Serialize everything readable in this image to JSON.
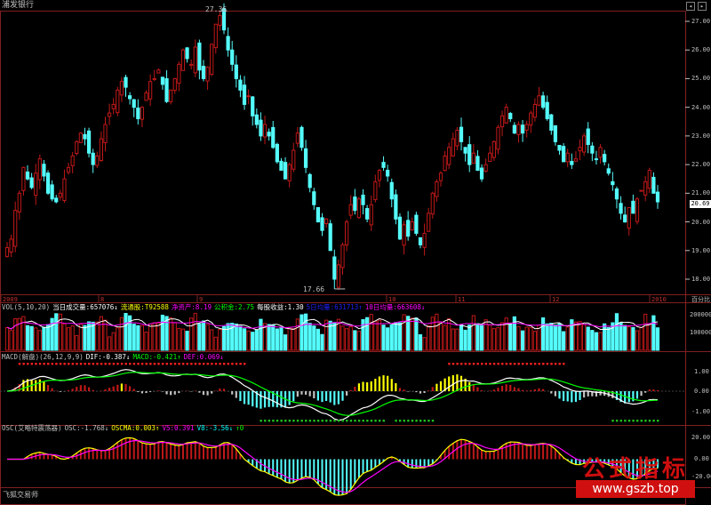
{
  "stock_name": "浦发银行",
  "footer_label": "飞狐交易师",
  "current_price_tag": "20.69",
  "high_label": "27.36",
  "low_label": "17.66",
  "price_axis": [
    "27.00",
    "26.00",
    "25.00",
    "24.00",
    "23.00",
    "22.00",
    "21.00",
    "20.00",
    "19.00",
    "18.00"
  ],
  "price_axis_unit": "百分比",
  "time_axis": [
    "2009",
    "8",
    "9",
    "10",
    "11",
    "12",
    "2010"
  ],
  "volume_panel": {
    "items": [
      {
        "text": "VOL(5,10,20)",
        "color": "#c0c0c0"
      },
      {
        "text": "当日成交量:657076↓",
        "color": "#ffffff"
      },
      {
        "text": "流通股:T92588",
        "color": "#ffff00"
      },
      {
        "text": "净资产:8.19",
        "color": "#ff00ff"
      },
      {
        "text": "公积金:2.75",
        "color": "#00ff00"
      },
      {
        "text": "每股收益:1.30",
        "color": "#ffffff"
      },
      {
        "text": "5日均量:631713↑",
        "color": "#2020ff"
      },
      {
        "text": "10日均量:663608↓",
        "color": "#ff00ff"
      }
    ],
    "axis": [
      "200000",
      "100000"
    ]
  },
  "macd_panel": {
    "items": [
      {
        "text": "MACD(解盘)(26,12,9,9)",
        "color": "#c0c0c0"
      },
      {
        "text": "DIF:-0.387↓",
        "color": "#ffffff"
      },
      {
        "text": "MACD:-0.421↑",
        "color": "#00ff00"
      },
      {
        "text": "DEF:0.069↓",
        "color": "#ff00ff"
      }
    ],
    "axis": [
      "1.00",
      "0.00",
      "-1.00"
    ]
  },
  "osc_panel": {
    "items": [
      {
        "text": "OSC(艾略特震荡器)",
        "color": "#c0c0c0"
      },
      {
        "text": "OSC:-1.768↓",
        "color": "#c0c0c0"
      },
      {
        "text": "OSCMA:0.003↑",
        "color": "#ffff00"
      },
      {
        "text": "V5:0.391",
        "color": "#ff00ff"
      },
      {
        "text": "V8:-3.56↓",
        "color": "#00ffff"
      },
      {
        "text": "↑0",
        "color": "#00ff00"
      }
    ],
    "axis": [
      "20.00",
      "0.00",
      "-20.00"
    ]
  },
  "watermark": {
    "big": "公式指标",
    "url": "www.gszb.top"
  },
  "chart_data": {
    "type": "candlestick",
    "price_range": [
      17.5,
      27.5
    ],
    "close": [
      19.1,
      19.4,
      20.4,
      21.0,
      21.9,
      21.5,
      21.2,
      21.7,
      22.2,
      21.6,
      21.0,
      20.8,
      20.7,
      21.0,
      21.5,
      21.9,
      22.3,
      22.8,
      23.1,
      22.9,
      22.4,
      22.0,
      22.3,
      22.9,
      23.4,
      23.8,
      24.1,
      24.6,
      24.9,
      24.7,
      24.3,
      24.0,
      23.6,
      24.0,
      24.5,
      24.9,
      25.0,
      25.3,
      24.8,
      24.2,
      24.6,
      25.0,
      25.5,
      26.0,
      25.7,
      25.5,
      26.1,
      25.3,
      25.0,
      25.4,
      26.2,
      26.9,
      27.2,
      26.7,
      26.0,
      25.5,
      25.0,
      24.6,
      24.1,
      24.4,
      23.7,
      23.4,
      23.0,
      23.4,
      23.0,
      22.6,
      22.1,
      21.8,
      21.5,
      22.0,
      22.5,
      23.1,
      22.6,
      21.9,
      21.2,
      20.6,
      20.0,
      19.7,
      20.1,
      19.0,
      18.0,
      18.5,
      19.2,
      20.0,
      20.6,
      20.4,
      20.8,
      20.6,
      20.1,
      20.6,
      21.4,
      21.8,
      21.9,
      21.6,
      20.8,
      20.1,
      19.4,
      19.9,
      19.5,
      20.0,
      19.6,
      19.2,
      19.6,
      20.3,
      21.0,
      21.4,
      21.7,
      22.3,
      22.6,
      22.9,
      23.2,
      22.8,
      22.4,
      22.0,
      22.4,
      21.8,
      21.5,
      22.0,
      22.4,
      22.8,
      23.3,
      23.7,
      24.0,
      23.6,
      23.1,
      23.4,
      23.1,
      23.4,
      23.8,
      24.1,
      24.4,
      24.0,
      23.6,
      23.2,
      22.8,
      22.5,
      22.1,
      22.4,
      22.0,
      22.2,
      22.6,
      23.0,
      22.7,
      22.4,
      22.2,
      22.6,
      22.1,
      21.7,
      21.3,
      20.8,
      20.3,
      20.0,
      20.5,
      20.3,
      20.8,
      21.1,
      21.4,
      21.8,
      21.0,
      20.7
    ],
    "volume_max": 250000,
    "macd_range": [
      -1.5,
      1.5
    ],
    "osc_range": [
      -25,
      25
    ]
  }
}
